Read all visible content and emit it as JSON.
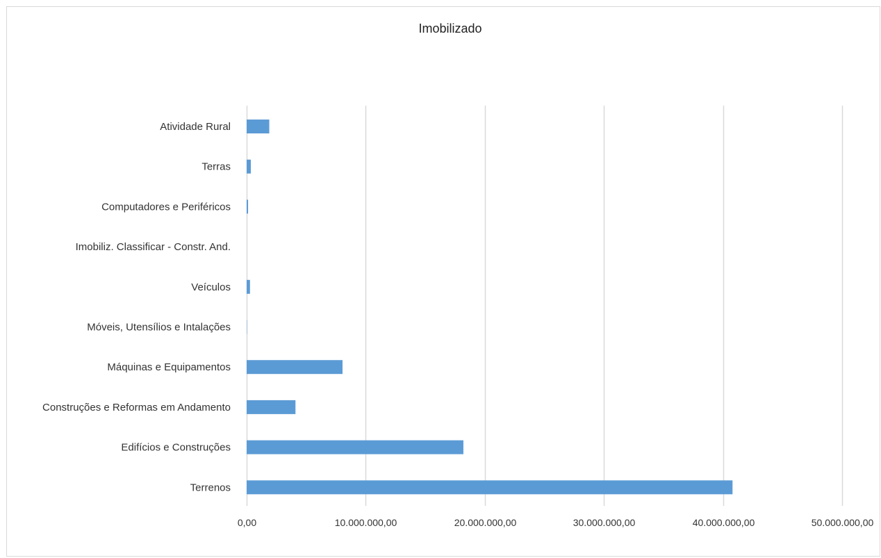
{
  "chart_data": {
    "type": "bar",
    "orientation": "horizontal",
    "title": "Imobilizado",
    "categories": [
      "Atividade Rural",
      "Terras",
      "Computadores e Periféricos",
      "Imobiliz. Classificar - Constr. And.",
      "Veículos",
      "Móveis, Utensílios e Intalações",
      "Máquinas e Equipamentos",
      "Construções e Reformas em Andamento",
      "Edifícios e  Construções",
      "Terrenos"
    ],
    "values": [
      1900000,
      350000,
      120000,
      0,
      280000,
      20000,
      8050000,
      4100000,
      18200000,
      40800000
    ],
    "xlim": [
      0,
      50000000
    ],
    "x_ticks": [
      0,
      10000000,
      20000000,
      30000000,
      40000000,
      50000000
    ],
    "x_tick_labels": [
      "0,00",
      "10.000.000,00",
      "20.000.000,00",
      "30.000.000,00",
      "40.000.000,00",
      "50.000.000,00"
    ],
    "xlabel": "",
    "ylabel": "",
    "grid": "vertical",
    "legend": "none",
    "bar_color": "#5b9bd5",
    "grid_color": "#d9d9d9"
  }
}
